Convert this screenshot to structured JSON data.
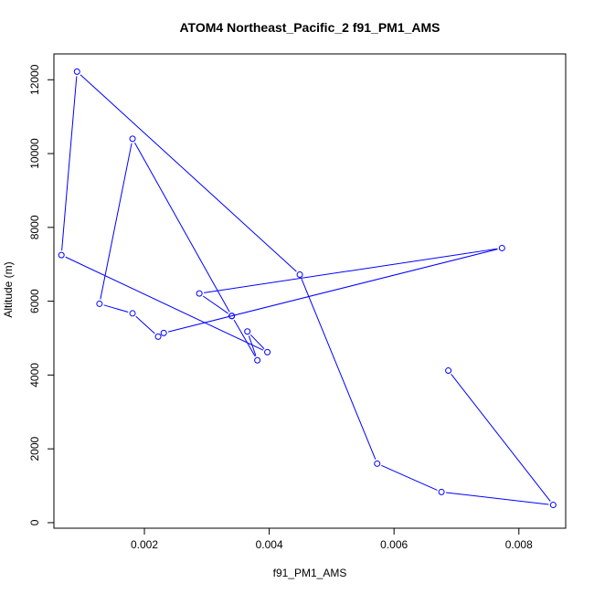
{
  "chart_data": {
    "type": "line",
    "title": "ATOM4 Northeast_Pacific_2 f91_PM1_AMS",
    "xlabel": "f91_PM1_AMS",
    "ylabel": "Altitude (m)",
    "xlim": [
      0.00055,
      0.00875
    ],
    "ylim": [
      -150,
      12700
    ],
    "xticks": [
      {
        "value": 0.002,
        "label": "0.002"
      },
      {
        "value": 0.004,
        "label": "0.004"
      },
      {
        "value": 0.006,
        "label": "0.006"
      },
      {
        "value": 0.008,
        "label": "0.008"
      }
    ],
    "yticks": [
      {
        "value": 0,
        "label": "0"
      },
      {
        "value": 2000,
        "label": "2000"
      },
      {
        "value": 4000,
        "label": "4000"
      },
      {
        "value": 6000,
        "label": "6000"
      },
      {
        "value": 8000,
        "label": "8000"
      },
      {
        "value": 10000,
        "label": "10000"
      },
      {
        "value": 12000,
        "label": "12000"
      }
    ],
    "grid": false,
    "legend": "none",
    "series": [
      {
        "color": "#0000ff",
        "points": [
          {
            "x": 0.00687,
            "y": 4120
          },
          {
            "x": 0.00855,
            "y": 480
          },
          {
            "x": 0.00676,
            "y": 830
          },
          {
            "x": 0.00573,
            "y": 1600
          },
          {
            "x": 0.00449,
            "y": 6720
          },
          {
            "x": 0.00092,
            "y": 12220
          },
          {
            "x": 0.00067,
            "y": 7250
          },
          {
            "x": 0.00397,
            "y": 4620
          },
          {
            "x": 0.00365,
            "y": 5180
          },
          {
            "x": 0.00381,
            "y": 4400
          },
          {
            "x": 0.0034,
            "y": 5600
          },
          {
            "x": 0.00181,
            "y": 10400
          },
          {
            "x": 0.00128,
            "y": 5930
          },
          {
            "x": 0.00181,
            "y": 5670
          },
          {
            "x": 0.00222,
            "y": 5040
          },
          {
            "x": 0.00231,
            "y": 5140
          },
          {
            "x": 0.00773,
            "y": 7440
          },
          {
            "x": 0.00288,
            "y": 6210
          },
          {
            "x": 0.0034,
            "y": 5600
          }
        ]
      }
    ]
  }
}
